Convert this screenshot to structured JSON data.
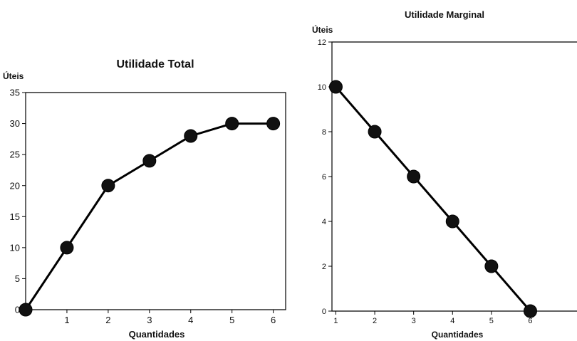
{
  "chart_data": [
    {
      "type": "line",
      "title": "Utilidade Total",
      "ylabel": "Úteis",
      "xlabel": "Quantidades",
      "x": [
        0,
        1,
        2,
        3,
        4,
        5,
        6
      ],
      "values": [
        0,
        10,
        20,
        24,
        28,
        30,
        30
      ],
      "xticks": [
        "1",
        "2",
        "3",
        "4",
        "5",
        "6"
      ],
      "yticks": [
        "0",
        "5",
        "10",
        "15",
        "20",
        "25",
        "30",
        "35"
      ],
      "ylim": [
        0,
        35
      ],
      "xlim": [
        0,
        6.3
      ],
      "grid": false,
      "colors": {
        "line": "#000000",
        "marker": "#111111"
      }
    },
    {
      "type": "line",
      "title": "Utilidade Marginal",
      "ylabel": "Úteis",
      "xlabel": "Quantidades",
      "x": [
        1,
        2,
        3,
        4,
        5,
        6
      ],
      "values": [
        10,
        8,
        6,
        4,
        2,
        0
      ],
      "xticks": [
        "1",
        "2",
        "3",
        "4",
        "5",
        "6"
      ],
      "yticks": [
        "0",
        "2",
        "4",
        "6",
        "8",
        "10",
        "12"
      ],
      "ylim": [
        0,
        12
      ],
      "xlim": [
        0.9,
        7.2
      ],
      "grid": false,
      "colors": {
        "line": "#000000",
        "marker": "#111111"
      }
    }
  ]
}
